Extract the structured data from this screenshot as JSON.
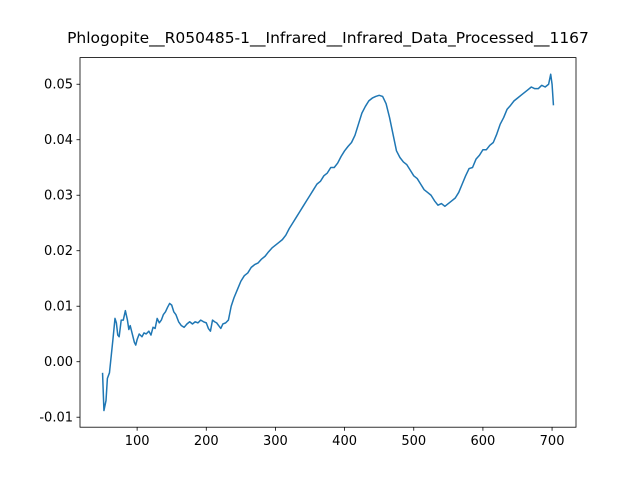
{
  "chart_data": {
    "type": "line",
    "title": "Phlogopite__R050485-1__Infrared__Infrared_Data_Processed__1167",
    "x": [
      50,
      52,
      55,
      57,
      60,
      65,
      68,
      70,
      72,
      74,
      77,
      80,
      83,
      86,
      88,
      90,
      93,
      96,
      98,
      100,
      103,
      107,
      110,
      113,
      117,
      120,
      123,
      126,
      129,
      132,
      135,
      138,
      141,
      144,
      147,
      150,
      153,
      156,
      160,
      164,
      168,
      172,
      176,
      180,
      184,
      188,
      192,
      196,
      200,
      203,
      206,
      209,
      212,
      215,
      218,
      221,
      224,
      228,
      232,
      236,
      240,
      245,
      250,
      255,
      260,
      265,
      270,
      275,
      280,
      285,
      290,
      295,
      300,
      305,
      310,
      315,
      320,
      325,
      330,
      335,
      340,
      345,
      350,
      355,
      360,
      365,
      370,
      375,
      380,
      385,
      390,
      395,
      400,
      405,
      410,
      415,
      420,
      425,
      430,
      435,
      440,
      445,
      450,
      455,
      460,
      465,
      470,
      475,
      480,
      485,
      490,
      495,
      500,
      505,
      510,
      515,
      520,
      525,
      530,
      535,
      540,
      545,
      550,
      555,
      560,
      565,
      570,
      575,
      580,
      585,
      590,
      595,
      600,
      605,
      610,
      615,
      620,
      625,
      630,
      635,
      640,
      645,
      650,
      655,
      660,
      665,
      670,
      675,
      680,
      685,
      690,
      695,
      698,
      700,
      702
    ],
    "series": [
      {
        "color": "#1f77b4",
        "values": [
          -0.002,
          -0.0088,
          -0.007,
          -0.003,
          -0.002,
          0.004,
          0.0078,
          0.007,
          0.0048,
          0.0045,
          0.0075,
          0.0075,
          0.0092,
          0.0075,
          0.0058,
          0.0065,
          0.005,
          0.0035,
          0.003,
          0.004,
          0.005,
          0.0045,
          0.0052,
          0.005,
          0.0055,
          0.0048,
          0.0062,
          0.006,
          0.0078,
          0.007,
          0.0075,
          0.0085,
          0.009,
          0.0098,
          0.0105,
          0.0102,
          0.009,
          0.0085,
          0.0072,
          0.0065,
          0.0062,
          0.0068,
          0.0072,
          0.0068,
          0.0072,
          0.007,
          0.0075,
          0.0072,
          0.007,
          0.006,
          0.0055,
          0.0075,
          0.0072,
          0.007,
          0.0065,
          0.006,
          0.0068,
          0.007,
          0.0075,
          0.01,
          0.0115,
          0.013,
          0.0145,
          0.0155,
          0.016,
          0.017,
          0.0175,
          0.0178,
          0.0185,
          0.019,
          0.0198,
          0.0205,
          0.021,
          0.0215,
          0.022,
          0.0228,
          0.024,
          0.025,
          0.026,
          0.027,
          0.028,
          0.029,
          0.03,
          0.031,
          0.032,
          0.0325,
          0.0335,
          0.034,
          0.035,
          0.035,
          0.0358,
          0.037,
          0.038,
          0.0388,
          0.0395,
          0.0408,
          0.0428,
          0.0448,
          0.046,
          0.047,
          0.0475,
          0.0478,
          0.048,
          0.0478,
          0.0465,
          0.044,
          0.041,
          0.038,
          0.0368,
          0.036,
          0.0355,
          0.0345,
          0.0335,
          0.033,
          0.032,
          0.031,
          0.0305,
          0.03,
          0.029,
          0.0282,
          0.0285,
          0.028,
          0.0285,
          0.029,
          0.0295,
          0.0305,
          0.032,
          0.0335,
          0.0348,
          0.035,
          0.0365,
          0.0372,
          0.0382,
          0.0382,
          0.039,
          0.0395,
          0.041,
          0.0428,
          0.044,
          0.0455,
          0.0462,
          0.047,
          0.0475,
          0.048,
          0.0485,
          0.049,
          0.0495,
          0.0492,
          0.0492,
          0.0498,
          0.0495,
          0.05,
          0.0518,
          0.05,
          0.0462
        ]
      }
    ],
    "xlim": [
      17.4,
      734.6
    ],
    "xticks": [
      100,
      200,
      300,
      400,
      500,
      600,
      700
    ],
    "ylim": [
      -0.0118,
      0.0548
    ],
    "yticks": [
      -0.01,
      {
        "value": 0,
        "label": "0.00"
      },
      0.01,
      0.02,
      0.03,
      0.04,
      0.05
    ],
    "grid": false
  }
}
